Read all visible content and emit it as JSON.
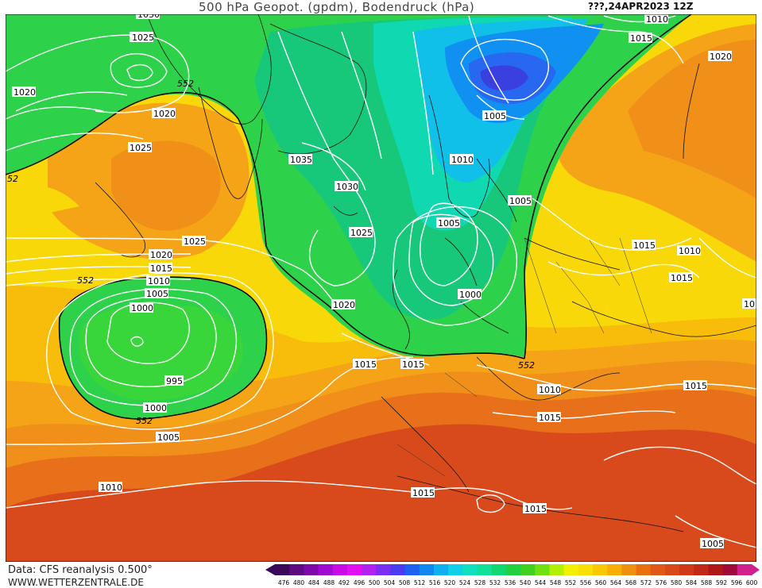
{
  "title": "500 hPa Geopot. (gpdm), Bodendruck (hPa)",
  "valid_time": "???,24APR2023 12Z",
  "footer": {
    "data_source": "Data: CFS reanalysis 0.500°",
    "website": "WWW.WETTERZENTRALE.DE"
  },
  "isobar_labels": {
    "l1": "1025",
    "l2": "1020",
    "l3": "1020",
    "l4": "1025",
    "l5": "1035",
    "l6": "1030",
    "l7": "1025",
    "l8": "1025",
    "l9": "1020",
    "l10": "1015",
    "l11": "1010",
    "l12": "1005",
    "l13": "1000",
    "l14": "995",
    "l15": "1000",
    "l16": "1005",
    "l17": "1010",
    "l18": "1020",
    "l19": "1015",
    "l20": "1015",
    "l21": "1005",
    "l22": "1010",
    "l23": "1005",
    "l24": "1005",
    "l25": "1000",
    "l26": "1010",
    "l27": "1015",
    "l28": "1020",
    "l29": "1015",
    "l30": "1010",
    "l31": "1015",
    "l32": "1015",
    "l33": "1010",
    "l34": "1015",
    "l35": "1015",
    "l36": "1015",
    "l37": "1005",
    "l38": "10",
    "l39": "1030"
  },
  "geopot_labels": {
    "g1": "552",
    "g2": "52",
    "g3": "552",
    "g4": "552",
    "g5": "552"
  },
  "color_scale": {
    "ticks": [
      "476",
      "480",
      "484",
      "488",
      "492",
      "496",
      "500",
      "504",
      "508",
      "512",
      "516",
      "520",
      "524",
      "528",
      "532",
      "536",
      "540",
      "544",
      "548",
      "552",
      "556",
      "560",
      "564",
      "568",
      "572",
      "576",
      "580",
      "584",
      "588",
      "592",
      "596",
      "600"
    ],
    "colors": [
      "#3a0a5a",
      "#5c0b80",
      "#7d0aa8",
      "#a00ad0",
      "#c80ae8",
      "#e010f0",
      "#b020f0",
      "#7a2ef0",
      "#4a3cf0",
      "#2060f0",
      "#1088f0",
      "#10b0f0",
      "#10d0e8",
      "#10e0c0",
      "#10e098",
      "#10d870",
      "#20d040",
      "#40d020",
      "#70e010",
      "#b0f000",
      "#f0f000",
      "#f8e000",
      "#f8c800",
      "#f8b000",
      "#f09010",
      "#e87010",
      "#e05818",
      "#d84818",
      "#d03818",
      "#c02818",
      "#b01818",
      "#a00a3a",
      "#d0208c"
    ]
  }
}
